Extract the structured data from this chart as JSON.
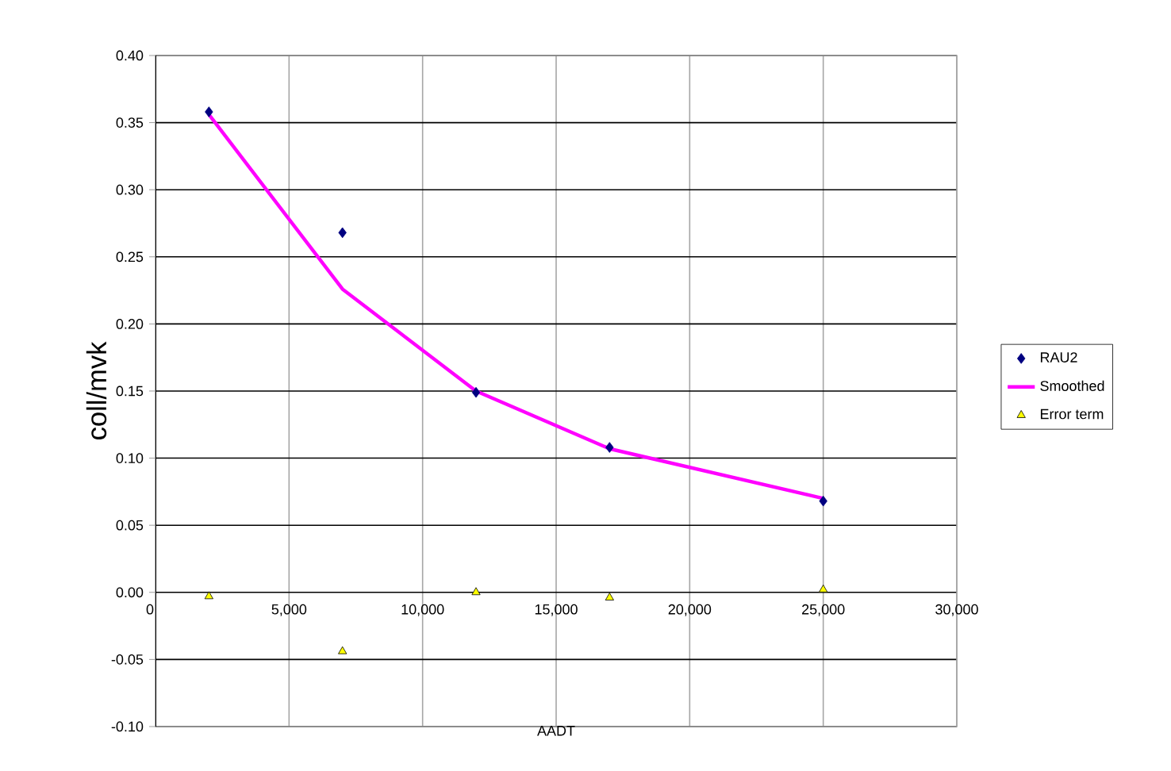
{
  "chart_data": {
    "type": "scatter",
    "xlabel": "AADT",
    "ylabel": "coll/mvk",
    "xlim": [
      0,
      30000
    ],
    "ylim": [
      -0.1,
      0.4
    ],
    "xticks": [
      0,
      {
        "value": 5000,
        "label": "5,000"
      },
      {
        "value": 10000,
        "label": "10,000"
      },
      {
        "value": 15000,
        "label": "15,000"
      },
      {
        "value": 20000,
        "label": "20,000"
      },
      {
        "value": 25000,
        "label": "25,000"
      },
      {
        "value": 30000,
        "label": "30,000"
      }
    ],
    "yticks": [
      {
        "value": -0.1,
        "label": "-0.10"
      },
      {
        "value": -0.05,
        "label": "-0.05"
      },
      {
        "value": 0,
        "label": "0.00"
      },
      {
        "value": 0.05,
        "label": "0.05"
      },
      {
        "value": 0.1,
        "label": "0.10"
      },
      {
        "value": 0.15,
        "label": "0.15"
      },
      {
        "value": 0.2,
        "label": "0.20"
      },
      {
        "value": 0.25,
        "label": "0.25"
      },
      {
        "value": 0.3,
        "label": "0.30"
      },
      {
        "value": 0.35,
        "label": "0.35"
      },
      {
        "value": 0.4,
        "label": "0.40"
      }
    ],
    "x": [
      2000,
      7000,
      12000,
      17000,
      25000
    ],
    "series": [
      {
        "name": "RAU2",
        "marker": "diamond",
        "color": "#000080",
        "values": [
          0.358,
          0.268,
          0.149,
          0.108,
          0.068
        ]
      },
      {
        "name": "Smoothed",
        "type": "line",
        "marker": "none",
        "color": "#ff00ff",
        "values": [
          0.356,
          0.226,
          0.15,
          0.107,
          0.07
        ]
      },
      {
        "name": "Error term",
        "marker": "triangle",
        "color": "#ffff00",
        "values": [
          -0.003,
          -0.044,
          0.0,
          -0.004,
          0.002
        ]
      }
    ],
    "grid": true,
    "legend": "right"
  }
}
